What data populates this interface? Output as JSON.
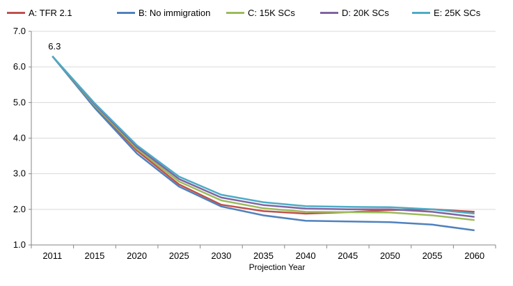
{
  "chart_data": {
    "type": "line",
    "title": "",
    "xlabel": "Projection Year",
    "ylabel": "",
    "categories": [
      "2011",
      "2015",
      "2020",
      "2025",
      "2030",
      "2035",
      "2040",
      "2045",
      "2050",
      "2055",
      "2060"
    ],
    "ylim": [
      1.0,
      7.0
    ],
    "yticks": [
      "1.0",
      "2.0",
      "3.0",
      "4.0",
      "5.0",
      "6.0",
      "7.0"
    ],
    "grid": "horizontal",
    "legend_position": "top",
    "annotations": [
      {
        "label": "6.3",
        "x": "2011",
        "y": 6.3
      }
    ],
    "series": [
      {
        "name": "A: TFR 2.1",
        "color": "#c0504d",
        "values": [
          6.3,
          4.9,
          3.65,
          2.7,
          2.13,
          1.95,
          1.88,
          1.92,
          1.98,
          2.0,
          1.93
        ]
      },
      {
        "name": "B: No immigration",
        "color": "#4f81bd",
        "values": [
          6.3,
          4.85,
          3.57,
          2.64,
          2.08,
          1.83,
          1.68,
          1.66,
          1.64,
          1.57,
          1.41
        ]
      },
      {
        "name": "C: 15K SCs",
        "color": "#9bbb59",
        "values": [
          6.3,
          4.92,
          3.7,
          2.78,
          2.25,
          2.03,
          1.93,
          1.92,
          1.91,
          1.83,
          1.7
        ]
      },
      {
        "name": "D: 20K SCs",
        "color": "#8064a2",
        "values": [
          6.3,
          4.95,
          3.75,
          2.85,
          2.33,
          2.12,
          2.02,
          2.0,
          2.0,
          1.93,
          1.79
        ]
      },
      {
        "name": "E: 25K SCs",
        "color": "#4bacc6",
        "values": [
          6.3,
          4.98,
          3.8,
          2.92,
          2.41,
          2.2,
          2.09,
          2.07,
          2.06,
          2.0,
          1.88
        ]
      }
    ]
  }
}
